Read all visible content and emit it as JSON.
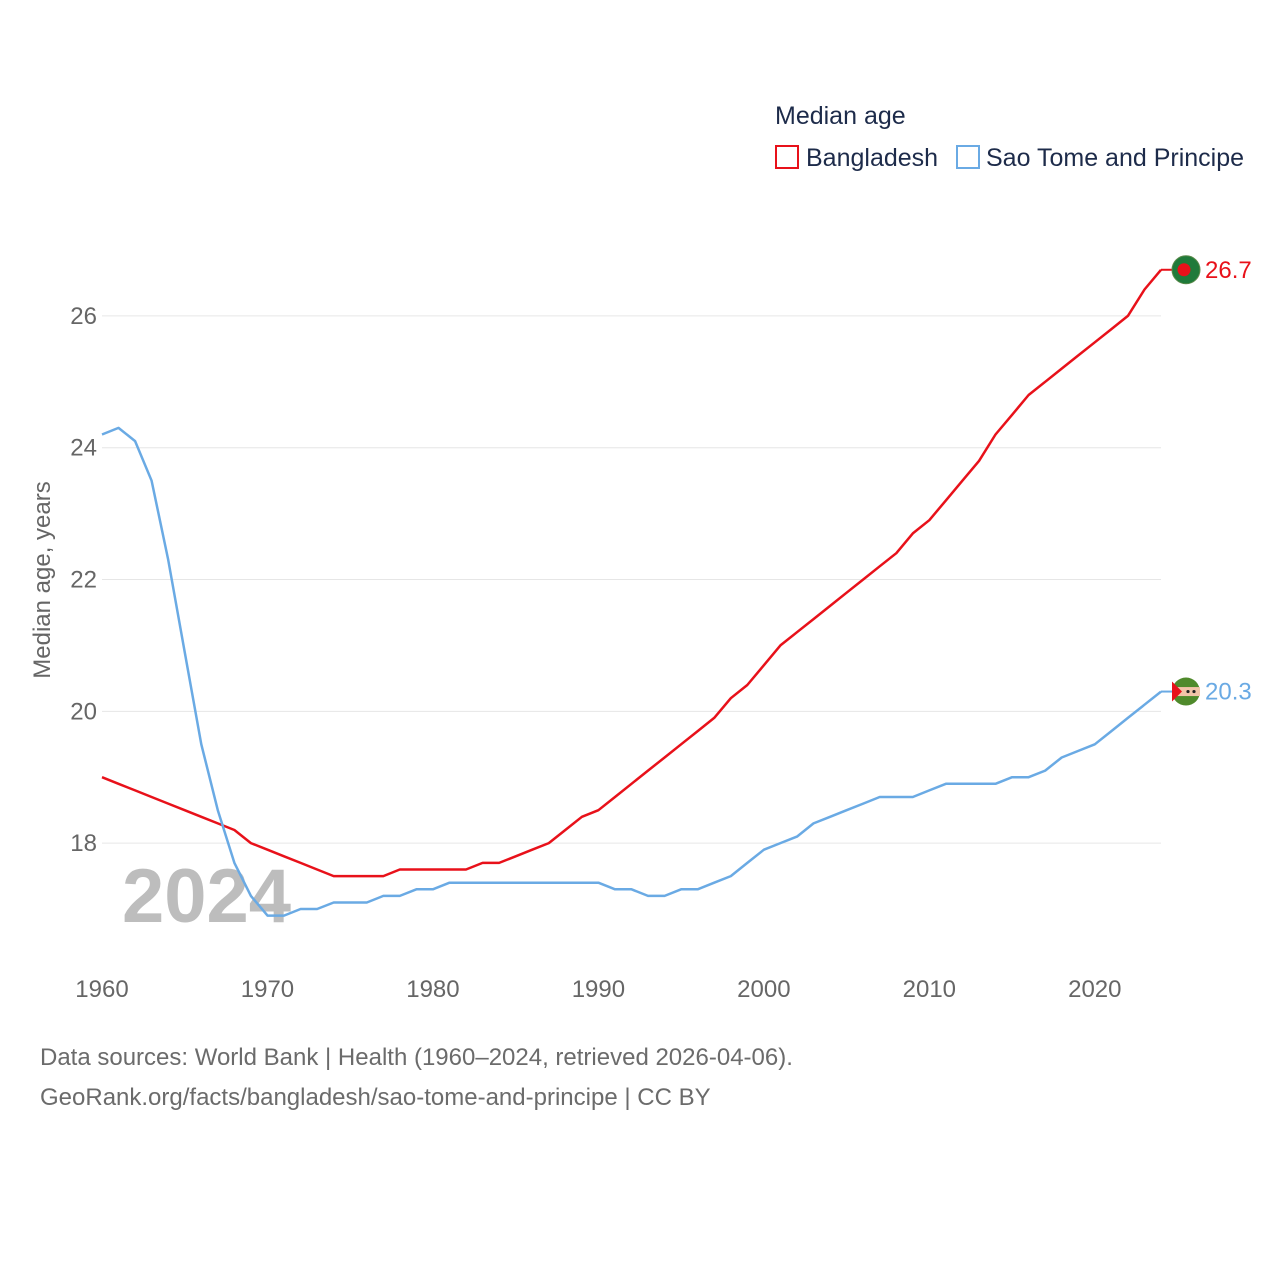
{
  "chart_data": {
    "type": "line",
    "title": "Median age",
    "ylabel": "Median age, years",
    "xlabel": "",
    "xlim": [
      1960,
      2024
    ],
    "ylim": [
      16.5,
      27
    ],
    "grid": true,
    "legend": "top-right",
    "x_ticks": [
      1960,
      1970,
      1980,
      1990,
      2000,
      2010,
      2020
    ],
    "y_ticks": [
      18,
      20,
      22,
      24,
      26
    ],
    "year_label": "2024",
    "x": [
      1960,
      1961,
      1962,
      1963,
      1964,
      1965,
      1966,
      1967,
      1968,
      1969,
      1970,
      1971,
      1972,
      1973,
      1974,
      1975,
      1976,
      1977,
      1978,
      1979,
      1980,
      1981,
      1982,
      1983,
      1984,
      1985,
      1986,
      1987,
      1988,
      1989,
      1990,
      1991,
      1992,
      1993,
      1994,
      1995,
      1996,
      1997,
      1998,
      1999,
      2000,
      2001,
      2002,
      2003,
      2004,
      2005,
      2006,
      2007,
      2008,
      2009,
      2010,
      2011,
      2012,
      2013,
      2014,
      2015,
      2016,
      2017,
      2018,
      2019,
      2020,
      2021,
      2022,
      2023,
      2024
    ],
    "series": [
      {
        "name": "Bangladesh",
        "color": "#e8111a",
        "end_label": "26.7",
        "values": [
          19.0,
          18.9,
          18.8,
          18.7,
          18.6,
          18.5,
          18.4,
          18.3,
          18.2,
          18.0,
          17.9,
          17.8,
          17.7,
          17.6,
          17.5,
          17.5,
          17.5,
          17.5,
          17.6,
          17.6,
          17.6,
          17.6,
          17.6,
          17.7,
          17.7,
          17.8,
          17.9,
          18.0,
          18.2,
          18.4,
          18.5,
          18.7,
          18.9,
          19.1,
          19.3,
          19.5,
          19.7,
          19.9,
          20.2,
          20.4,
          20.7,
          21.0,
          21.2,
          21.4,
          21.6,
          21.8,
          22.0,
          22.2,
          22.4,
          22.7,
          22.9,
          23.2,
          23.5,
          23.8,
          24.2,
          24.5,
          24.8,
          25.0,
          25.2,
          25.4,
          25.6,
          25.8,
          26.0,
          26.4,
          26.7
        ]
      },
      {
        "name": "Sao Tome and Principe",
        "color": "#6aaae4",
        "end_label": "20.3",
        "values": [
          24.2,
          24.3,
          24.1,
          23.5,
          22.3,
          20.9,
          19.5,
          18.5,
          17.7,
          17.2,
          16.9,
          16.9,
          17.0,
          17.0,
          17.1,
          17.1,
          17.1,
          17.2,
          17.2,
          17.3,
          17.3,
          17.4,
          17.4,
          17.4,
          17.4,
          17.4,
          17.4,
          17.4,
          17.4,
          17.4,
          17.4,
          17.3,
          17.3,
          17.2,
          17.2,
          17.3,
          17.3,
          17.4,
          17.5,
          17.7,
          17.9,
          18.0,
          18.1,
          18.3,
          18.4,
          18.5,
          18.6,
          18.7,
          18.7,
          18.7,
          18.8,
          18.9,
          18.9,
          18.9,
          18.9,
          19.0,
          19.0,
          19.1,
          19.3,
          19.4,
          19.5,
          19.7,
          19.9,
          20.1,
          20.3
        ]
      }
    ]
  },
  "sources": {
    "line1": "Data sources: World Bank | Health (1960–2024, retrieved 2026-04-06).",
    "line2": "GeoRank.org/facts/bangladesh/sao-tome-and-principe | CC BY"
  }
}
